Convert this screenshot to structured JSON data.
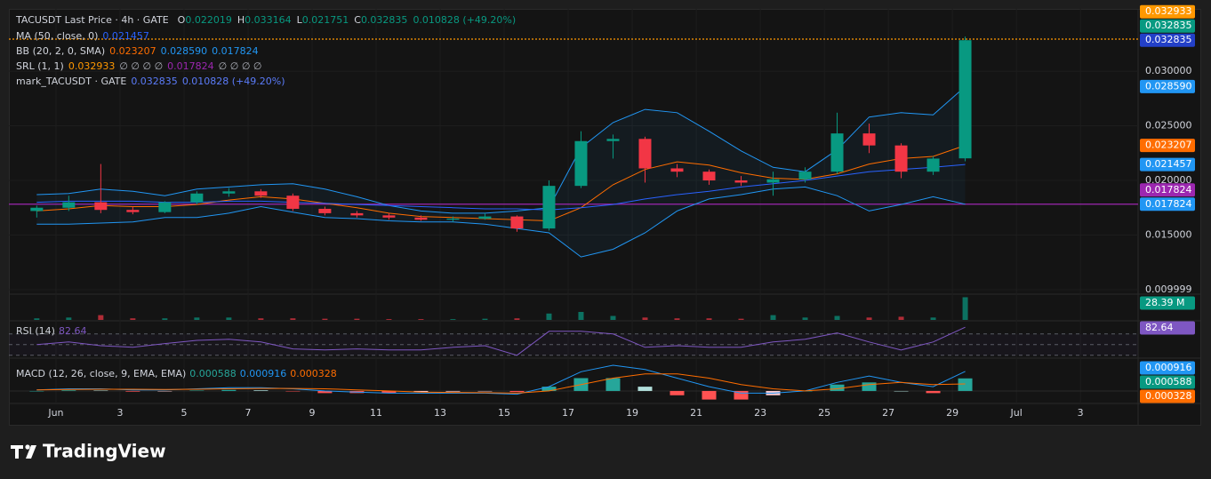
{
  "header": {
    "symbol": "TACUSDT Last Price · 4h · GATE",
    "ohlc_prefixes": [
      "O",
      "H",
      "L",
      "C"
    ],
    "change": "0.010828 (+49.20%)",
    "value_color": "#089981"
  },
  "legend": [
    {
      "name": "MA (50, close, 0)",
      "values": [
        "0.021457"
      ],
      "colors": [
        "#2962ff"
      ]
    },
    {
      "name": "BB (20, 2, 0, SMA)",
      "values": [
        "0.023207",
        "0.028590",
        "0.017824"
      ],
      "colors": [
        "#ff6d00",
        "#2196f3",
        "#2196f3"
      ]
    },
    {
      "name": "SRL (1, 1)",
      "values": [
        "0.032933",
        "∅ ∅ ∅ ∅",
        "0.017824",
        "∅ ∅ ∅ ∅"
      ],
      "colors": [
        "#ff9800",
        "#b2b5be",
        "#9c27b0",
        "#b2b5be"
      ]
    },
    {
      "name": "mark_TACUSDT · GATE",
      "values": [
        "0.032835",
        "0.010828 (+49.20%)"
      ],
      "colors": [
        "#5b7cfa",
        "#5b7cfa"
      ]
    }
  ],
  "chart_data": {
    "type": "candlestick",
    "x": [
      0.4,
      1.4,
      2.4,
      3.4,
      4.4,
      5.4,
      6.4,
      7.4,
      8.4,
      9.4,
      10.4,
      11.4,
      12.4,
      13.4,
      14.4,
      15.4,
      16.4,
      17.4,
      18.4,
      19.4,
      20.4,
      21.4,
      22.4,
      23.4,
      24.4,
      25.4,
      26.4,
      27.4,
      28.4,
      29.4
    ],
    "xlim": [
      -0.47,
      34.8
    ],
    "xticks": [
      {
        "value": 1,
        "label": "Jun"
      },
      3,
      5,
      7,
      9,
      11,
      13,
      15,
      17,
      19,
      21,
      23,
      25,
      27,
      29,
      {
        "value": 31,
        "label": "Jul"
      },
      {
        "value": 33,
        "label": "3"
      }
    ],
    "ylim": [
      0.00967,
      0.0357
    ],
    "yticks": [
      {
        "value": 0.03,
        "label": "0.030000"
      },
      {
        "value": 0.025,
        "label": "0.025000"
      },
      {
        "value": 0.02,
        "label": "0.020000"
      },
      {
        "value": 0.015,
        "label": "0.015000"
      },
      0.009999
    ],
    "up_color": "#089981",
    "down_color": "#f23645",
    "candles": {
      "open": [
        0.0172,
        0.0175,
        0.018,
        0.0173,
        0.0171,
        0.018,
        0.0188,
        0.019,
        0.0186,
        0.0174,
        0.017,
        0.0168,
        0.0166,
        0.0164,
        0.0165,
        0.0167,
        0.0156,
        0.0195,
        0.0236,
        0.0238,
        0.0211,
        0.0208,
        0.02,
        0.0198,
        0.0201,
        0.0208,
        0.0243,
        0.0232,
        0.0208,
        0.022019
      ],
      "high": [
        0.0177,
        0.0186,
        0.0215,
        0.0176,
        0.0181,
        0.019,
        0.0193,
        0.0192,
        0.0188,
        0.0176,
        0.0172,
        0.017,
        0.0168,
        0.0167,
        0.017,
        0.0168,
        0.02,
        0.0245,
        0.0242,
        0.024,
        0.0215,
        0.021,
        0.0204,
        0.0208,
        0.0212,
        0.0262,
        0.0252,
        0.0234,
        0.0222,
        0.033164
      ],
      "low": [
        0.0166,
        0.0172,
        0.017,
        0.0169,
        0.017,
        0.0178,
        0.0185,
        0.0184,
        0.0172,
        0.0168,
        0.0166,
        0.0164,
        0.0163,
        0.0162,
        0.0164,
        0.0153,
        0.0154,
        0.0193,
        0.022,
        0.0198,
        0.0203,
        0.0196,
        0.0195,
        0.0186,
        0.0198,
        0.0206,
        0.0225,
        0.0202,
        0.0205,
        0.021751
      ],
      "close": [
        0.0175,
        0.018,
        0.0173,
        0.0171,
        0.018,
        0.0188,
        0.019,
        0.0186,
        0.0174,
        0.017,
        0.0168,
        0.0166,
        0.0164,
        0.0165,
        0.0167,
        0.0156,
        0.0195,
        0.0236,
        0.0238,
        0.0211,
        0.0208,
        0.02,
        0.0198,
        0.0201,
        0.0208,
        0.0243,
        0.0232,
        0.0208,
        0.022,
        0.032835
      ]
    },
    "ma": {
      "color": "#2962ff",
      "values": [
        0.018,
        0.0181,
        0.0181,
        0.0181,
        0.018,
        0.018,
        0.0181,
        0.0181,
        0.018,
        0.0179,
        0.0178,
        0.0177,
        0.0176,
        0.0175,
        0.0174,
        0.0174,
        0.0173,
        0.0175,
        0.0178,
        0.0183,
        0.0187,
        0.019,
        0.0194,
        0.0197,
        0.02,
        0.0204,
        0.0208,
        0.021,
        0.0212,
        0.021457
      ]
    },
    "bollinger": {
      "basis_color": "#ff6d00",
      "band_color": "#2196f3",
      "basis": [
        0.0172,
        0.0174,
        0.0177,
        0.0176,
        0.0176,
        0.0178,
        0.0182,
        0.0185,
        0.0183,
        0.0179,
        0.0175,
        0.017,
        0.0167,
        0.0166,
        0.0165,
        0.0164,
        0.0163,
        0.0175,
        0.0196,
        0.021,
        0.0217,
        0.0214,
        0.0207,
        0.0202,
        0.0201,
        0.0206,
        0.0215,
        0.022,
        0.0222,
        0.023207
      ],
      "upper": [
        0.0187,
        0.0188,
        0.0192,
        0.019,
        0.0186,
        0.0192,
        0.0194,
        0.0196,
        0.0197,
        0.0192,
        0.0185,
        0.0177,
        0.0172,
        0.017,
        0.017,
        0.0172,
        0.0175,
        0.023,
        0.0253,
        0.0265,
        0.0262,
        0.0245,
        0.0227,
        0.0212,
        0.0208,
        0.0228,
        0.0258,
        0.0262,
        0.026,
        0.02859
      ],
      "lower": [
        0.016,
        0.016,
        0.0161,
        0.0162,
        0.0166,
        0.0166,
        0.017,
        0.0176,
        0.0171,
        0.0166,
        0.0165,
        0.0163,
        0.0162,
        0.0162,
        0.016,
        0.0156,
        0.0152,
        0.013,
        0.0137,
        0.0152,
        0.0172,
        0.0183,
        0.0187,
        0.0192,
        0.0194,
        0.0186,
        0.0172,
        0.0178,
        0.0185,
        0.017824
      ]
    },
    "levels": [
      {
        "value": 0.032933,
        "color": "#ff9800",
        "dash": true
      },
      {
        "value": 0.017824,
        "color": "#9c27b0",
        "dash": false
      }
    ],
    "price_tags": [
      {
        "value": 0.032933,
        "color": "#ff9800"
      },
      {
        "value": 0.032835,
        "color": "#089981"
      },
      {
        "value": 0.032835,
        "color": "#2340c8"
      },
      {
        "value": 0.02859,
        "label": "0.028590",
        "color": "#2196f3"
      },
      {
        "value": 0.023207,
        "color": "#ff6d00"
      },
      {
        "value": 0.021457,
        "color": "#2196f3"
      },
      {
        "value": 0.017824,
        "color": "#9c27b0"
      },
      {
        "value": 0.017824,
        "color": "#2196f3"
      }
    ],
    "volume": {
      "values": [
        2,
        3,
        6,
        2,
        2,
        3,
        3,
        2,
        2,
        1.5,
        1.5,
        1,
        1,
        1,
        1.5,
        2,
        8,
        10,
        5,
        3,
        2,
        2,
        1.5,
        6,
        3,
        5,
        3,
        4,
        3,
        28.39
      ],
      "ylim": [
        0,
        30
      ],
      "tag": "28.39 M"
    },
    "rsi": {
      "label": "RSI (14)",
      "color": "#7e57c2",
      "ylim": [
        23,
        93
      ],
      "levels": [
        70,
        50,
        30
      ],
      "values": [
        50,
        55,
        48,
        45,
        52,
        58,
        60,
        55,
        42,
        40,
        42,
        40,
        40,
        45,
        48,
        30,
        75,
        75,
        70,
        45,
        48,
        45,
        45,
        55,
        60,
        72,
        55,
        40,
        55,
        82.64
      ]
    },
    "macd": {
      "label": "MACD (12, 26, close, 9, EMA, EMA)",
      "ylim": [
        -0.0005,
        0.00145
      ],
      "macd_color": "#2196f3",
      "signal_color": "#ff6d00",
      "histogram": [
        0,
        3e-05,
        2e-05,
        -3e-05,
        -2e-05,
        2e-05,
        5e-05,
        3e-05,
        -2e-05,
        -0.0001,
        -0.0001,
        -0.0001,
        -5e-05,
        -3e-05,
        -2e-05,
        -5e-05,
        0.0002,
        0.0006,
        0.0006,
        0.0002,
        -0.0002,
        -0.0004,
        -0.0004,
        -0.0002,
        0,
        0.0003,
        0.0004,
        0,
        -0.0001,
        0.000588
      ],
      "macd": [
        5e-05,
        0.0001,
        0.0001,
        5e-05,
        5e-05,
        0.0001,
        0.00015,
        0.00015,
        0.0001,
        0,
        -5e-05,
        -0.0001,
        -0.0001,
        -0.0001,
        -0.0001,
        -0.00015,
        0.0002,
        0.0009,
        0.0012,
        0.001,
        0.0006,
        0.0002,
        -0.0001,
        -0.0001,
        0,
        0.0004,
        0.0007,
        0.0004,
        0.0002,
        0.000916
      ],
      "signal": [
        5e-05,
        7e-05,
        8e-05,
        8e-05,
        7e-05,
        8e-05,
        0.0001,
        0.00012,
        0.00012,
        0.0001,
        5e-05,
        0,
        -5e-05,
        -7e-05,
        -8e-05,
        -0.0001,
        0,
        0.0003,
        0.0006,
        0.0008,
        0.0008,
        0.0006,
        0.0003,
        0.0001,
        0,
        0.0001,
        0.0003,
        0.0004,
        0.0003,
        0.000328
      ]
    }
  },
  "footer": {
    "brand": "TradingView"
  }
}
